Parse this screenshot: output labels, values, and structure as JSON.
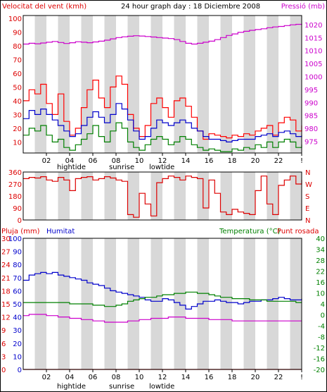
{
  "chart_data": [
    {
      "type": "line",
      "panel": "wind-pressure",
      "title": "24 hour graph day : 18 Diciembre 2008",
      "left_label": "Velocitat del vent (kmh)",
      "right_label": "Pressió (mb)",
      "x_ticks": [
        "02",
        "04",
        "06",
        "08",
        "10",
        "12",
        "14",
        "16",
        "18",
        "20",
        "22",
        "!"
      ],
      "x_annotations": [
        "hightide",
        "sunrise",
        "lowtide"
      ],
      "y_left_ticks": [
        10,
        20,
        30,
        40,
        50,
        60,
        70,
        80,
        90,
        100
      ],
      "y_left_range": [
        2,
        102
      ],
      "y_right_ticks": [
        975,
        980,
        985,
        990,
        995,
        1000,
        1005,
        1010,
        1015,
        1020
      ],
      "y_right_range": [
        970.5,
        1023.5
      ],
      "series": [
        {
          "color": "#ff0000",
          "axis": "left",
          "x": [
            0,
            0.5,
            1,
            1.5,
            2,
            2.5,
            3,
            3.5,
            4,
            4.5,
            5,
            5.5,
            6,
            6.5,
            7,
            7.5,
            8,
            8.5,
            9,
            9.5,
            10,
            10.5,
            11,
            11.5,
            12,
            12.5,
            13,
            13.5,
            14,
            14.5,
            15,
            15.5,
            16,
            16.5,
            17,
            17.5,
            18,
            18.5,
            19,
            19.5,
            20,
            20.5,
            21,
            21.5,
            22,
            22.5,
            23,
            23.5,
            24
          ],
          "y": [
            40,
            48,
            45,
            52,
            38,
            30,
            45,
            25,
            15,
            20,
            35,
            48,
            55,
            42,
            35,
            50,
            58,
            52,
            30,
            20,
            14,
            22,
            38,
            42,
            35,
            28,
            40,
            42,
            36,
            28,
            18,
            12,
            16,
            15,
            14,
            13,
            15,
            14,
            16,
            15,
            18,
            20,
            22,
            15,
            24,
            28,
            26,
            18,
            22
          ]
        },
        {
          "color": "#0000cc",
          "axis": "left",
          "x": [
            0,
            0.5,
            1,
            1.5,
            2,
            2.5,
            3,
            3.5,
            4,
            4.5,
            5,
            5.5,
            6,
            6.5,
            7,
            7.5,
            8,
            8.5,
            9,
            9.5,
            10,
            10.5,
            11,
            11.5,
            12,
            12.5,
            13,
            13.5,
            14,
            14.5,
            15,
            15.5,
            16,
            16.5,
            17,
            17.5,
            18,
            18.5,
            19,
            19.5,
            20,
            20.5,
            21,
            21.5,
            22,
            22.5,
            23,
            23.5,
            24
          ],
          "y": [
            27,
            33,
            30,
            34,
            30,
            26,
            22,
            18,
            14,
            16,
            22,
            28,
            32,
            28,
            24,
            30,
            38,
            34,
            26,
            18,
            12,
            14,
            20,
            26,
            24,
            22,
            24,
            26,
            24,
            20,
            18,
            14,
            12,
            12,
            11,
            10,
            11,
            12,
            12,
            12,
            14,
            15,
            16,
            14,
            17,
            18,
            16,
            14,
            15
          ]
        },
        {
          "color": "#008000",
          "axis": "left",
          "x": [
            0,
            0.5,
            1,
            1.5,
            2,
            2.5,
            3,
            3.5,
            4,
            4.5,
            5,
            5.5,
            6,
            6.5,
            7,
            7.5,
            8,
            8.5,
            9,
            9.5,
            10,
            10.5,
            11,
            11.5,
            12,
            12.5,
            13,
            13.5,
            14,
            14.5,
            15,
            15.5,
            16,
            16.5,
            17,
            17.5,
            18,
            18.5,
            19,
            19.5,
            20,
            20.5,
            21,
            21.5,
            22,
            22.5,
            23,
            23.5,
            24
          ],
          "y": [
            15,
            20,
            18,
            22,
            15,
            10,
            12,
            6,
            4,
            8,
            12,
            16,
            22,
            14,
            10,
            18,
            24,
            20,
            10,
            6,
            4,
            8,
            12,
            14,
            12,
            8,
            10,
            14,
            12,
            8,
            6,
            4,
            5,
            4,
            3,
            3,
            5,
            4,
            6,
            5,
            8,
            6,
            10,
            6,
            10,
            12,
            10,
            6,
            8
          ]
        },
        {
          "color": "#cc00cc",
          "axis": "right",
          "x": [
            0,
            0.5,
            1,
            1.5,
            2,
            2.5,
            3,
            3.5,
            4,
            4.5,
            5,
            5.5,
            6,
            6.5,
            7,
            7.5,
            8,
            8.5,
            9,
            9.5,
            10,
            10.5,
            11,
            11.5,
            12,
            12.5,
            13,
            13.5,
            14,
            14.5,
            15,
            15.5,
            16,
            16.5,
            17,
            17.5,
            18,
            18.5,
            19,
            19.5,
            20,
            20.5,
            21,
            21.5,
            22,
            22.5,
            23,
            23.5,
            24
          ],
          "y": [
            1012.5,
            1012.8,
            1012.6,
            1012.9,
            1013.2,
            1013.5,
            1013.1,
            1012.7,
            1013.0,
            1013.4,
            1013.2,
            1013.0,
            1013.3,
            1013.6,
            1014.0,
            1014.5,
            1015.0,
            1015.3,
            1015.5,
            1015.7,
            1015.6,
            1015.4,
            1015.2,
            1015.0,
            1014.8,
            1014.6,
            1014.2,
            1013.5,
            1012.8,
            1012.5,
            1012.8,
            1013.2,
            1013.6,
            1014.2,
            1015.0,
            1015.8,
            1016.4,
            1017.0,
            1017.4,
            1017.8,
            1018.1,
            1018.4,
            1018.8,
            1019.1,
            1019.3,
            1019.6,
            1019.9,
            1020.1,
            1020.3
          ]
        }
      ]
    },
    {
      "type": "line",
      "panel": "wind-direction",
      "y_left_ticks": [
        0,
        90,
        180,
        270,
        360
      ],
      "y_left_range": [
        0,
        360
      ],
      "y_right_ticks": [
        "N",
        "W",
        "S",
        "E",
        "N"
      ],
      "series": [
        {
          "color": "#dd0000",
          "x": [
            0,
            0.5,
            1,
            1.5,
            2,
            2.5,
            3,
            3.5,
            4,
            4.5,
            5,
            5.5,
            6,
            6.5,
            7,
            7.5,
            8,
            8.5,
            9,
            9.5,
            10,
            10.5,
            11,
            11.5,
            12,
            12.5,
            13,
            13.5,
            14,
            14.5,
            15,
            15.5,
            16,
            16.5,
            17,
            17.5,
            18,
            18.5,
            19,
            19.5,
            20,
            20.5,
            21,
            21.5,
            22,
            22.5,
            23,
            23.5,
            24
          ],
          "y": [
            310,
            320,
            315,
            325,
            300,
            290,
            320,
            300,
            220,
            310,
            320,
            325,
            300,
            310,
            325,
            315,
            300,
            290,
            40,
            20,
            200,
            120,
            30,
            280,
            310,
            330,
            320,
            300,
            330,
            320,
            310,
            90,
            300,
            200,
            60,
            40,
            80,
            60,
            50,
            40,
            220,
            330,
            120,
            40,
            260,
            300,
            330,
            270,
            300
          ]
        }
      ]
    },
    {
      "type": "line",
      "panel": "rain-humidity-temperature",
      "left_label_rain": "Pluja (mm)",
      "left_label_humidity": "Humitat",
      "right_label_temperature": "Temperatura (°C)",
      "right_label_dewpoint": "Punt rosada",
      "y_rain_ticks": [
        0,
        3,
        6,
        9,
        12,
        15,
        18,
        21,
        24,
        27,
        30
      ],
      "y_rain_range": [
        0,
        30
      ],
      "y_humidity_ticks": [
        0,
        10,
        20,
        30,
        40,
        50,
        60,
        70,
        80,
        90,
        100
      ],
      "y_humidity_range": [
        0,
        100
      ],
      "y_temperature_ticks": [
        -20,
        -16,
        -12,
        -8,
        -4,
        0,
        4,
        10,
        16,
        22,
        28,
        34,
        40
      ],
      "y_temperature_range": [
        -20,
        40
      ],
      "series": [
        {
          "color": "#0000cc",
          "axis": "humidity",
          "x": [
            0,
            0.5,
            1,
            1.5,
            2,
            2.5,
            3,
            3.5,
            4,
            4.5,
            5,
            5.5,
            6,
            6.5,
            7,
            7.5,
            8,
            8.5,
            9,
            9.5,
            10,
            10.5,
            11,
            11.5,
            12,
            12.5,
            13,
            13.5,
            14,
            14.5,
            15,
            15.5,
            16,
            16.5,
            17,
            17.5,
            18,
            18.5,
            19,
            19.5,
            20,
            20.5,
            21,
            21.5,
            22,
            22.5,
            23,
            23.5,
            24
          ],
          "y": [
            68,
            72,
            73,
            74,
            73,
            74,
            72,
            71,
            70,
            69,
            68,
            66,
            65,
            64,
            62,
            60,
            59,
            58,
            57,
            56,
            55,
            53,
            52,
            52,
            54,
            53,
            51,
            49,
            46,
            48,
            50,
            52,
            52,
            53,
            52,
            51,
            51,
            50,
            51,
            52,
            52,
            53,
            53,
            54,
            55,
            54,
            53,
            53,
            54
          ]
        },
        {
          "color": "#008000",
          "axis": "humidity",
          "x": [
            0,
            0.5,
            1,
            1.5,
            2,
            2.5,
            3,
            3.5,
            4,
            4.5,
            5,
            5.5,
            6,
            6.5,
            7,
            7.5,
            8,
            8.5,
            9,
            9.5,
            10,
            10.5,
            11,
            11.5,
            12,
            12.5,
            13,
            13.5,
            14,
            14.5,
            15,
            15.5,
            16,
            16.5,
            17,
            17.5,
            18,
            18.5,
            19,
            19.5,
            20,
            20.5,
            21,
            21.5,
            22,
            22.5,
            23,
            23.5,
            24
          ],
          "y": [
            51,
            51,
            51,
            51,
            51,
            51,
            51,
            51,
            50,
            50,
            50,
            50,
            49,
            49,
            48,
            48,
            49,
            50,
            52,
            53,
            54,
            55,
            55,
            56,
            57,
            57,
            58,
            58,
            59,
            59,
            58,
            58,
            57,
            56,
            55,
            55,
            54,
            54,
            54,
            53,
            53,
            53,
            52,
            52,
            52,
            52,
            52,
            51,
            51
          ]
        },
        {
          "color": "#cc00cc",
          "axis": "humidity",
          "x": [
            0,
            0.5,
            1,
            1.5,
            2,
            2.5,
            3,
            3.5,
            4,
            4.5,
            5,
            5.5,
            6,
            6.5,
            7,
            7.5,
            8,
            8.5,
            9,
            9.5,
            10,
            10.5,
            11,
            11.5,
            12,
            12.5,
            13,
            13.5,
            14,
            14.5,
            15,
            15.5,
            16,
            16.5,
            17,
            17.5,
            18,
            18.5,
            19,
            19.5,
            20,
            20.5,
            21,
            21.5,
            22,
            22.5,
            23,
            23.5,
            24
          ],
          "y": [
            41,
            42,
            42,
            42,
            41,
            41,
            40,
            40,
            39,
            39,
            38,
            38,
            37,
            37,
            36,
            36,
            36,
            36,
            37,
            37,
            38,
            38,
            39,
            39,
            39,
            40,
            40,
            40,
            39,
            39,
            39,
            39,
            38,
            38,
            38,
            38,
            37,
            37,
            37,
            37,
            37,
            37,
            37,
            37,
            37,
            37,
            37,
            37,
            37
          ]
        },
        {
          "color": "#dd0000",
          "axis": "rain",
          "x": [
            0,
            24
          ],
          "y": [
            0,
            0
          ]
        }
      ]
    }
  ]
}
